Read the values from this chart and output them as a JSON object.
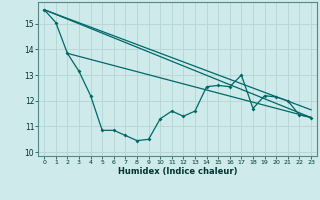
{
  "xlabel": "Humidex (Indice chaleur)",
  "background_color": "#ceeaea",
  "grid_color": "#b8d8d8",
  "line_color": "#006868",
  "xlim": [
    -0.5,
    23.5
  ],
  "ylim": [
    9.85,
    15.85
  ],
  "yticks": [
    10,
    11,
    12,
    13,
    14,
    15
  ],
  "xticks": [
    0,
    1,
    2,
    3,
    4,
    5,
    6,
    7,
    8,
    9,
    10,
    11,
    12,
    13,
    14,
    15,
    16,
    17,
    18,
    19,
    20,
    21,
    22,
    23
  ],
  "series1_x": [
    0,
    1,
    2,
    3,
    4,
    5,
    6,
    7,
    8,
    9,
    10,
    11,
    12,
    13,
    14,
    15,
    16,
    17,
    18,
    19,
    20,
    21,
    22,
    23
  ],
  "series1_y": [
    15.55,
    15.05,
    13.85,
    13.15,
    12.2,
    10.85,
    10.85,
    10.65,
    10.45,
    10.5,
    11.3,
    11.6,
    11.4,
    11.6,
    12.55,
    12.6,
    12.55,
    13.0,
    11.7,
    12.2,
    12.15,
    12.0,
    11.45,
    11.35
  ],
  "trend1_x": [
    0,
    23
  ],
  "trend1_y": [
    15.55,
    11.35
  ],
  "trend2_x": [
    2,
    23
  ],
  "trend2_y": [
    13.85,
    11.35
  ],
  "trend3_x": [
    0,
    23
  ],
  "trend3_y": [
    15.55,
    11.65
  ]
}
